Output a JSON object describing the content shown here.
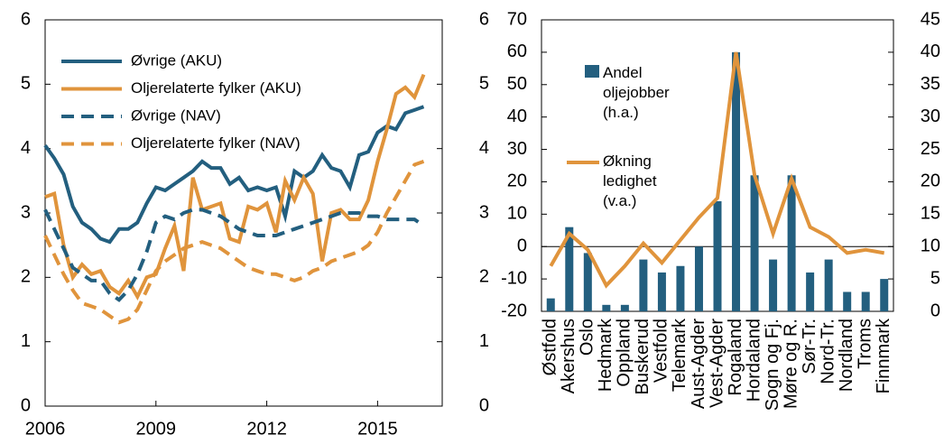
{
  "chart_data": [
    {
      "type": "line",
      "x": [
        2006,
        2006.25,
        2006.5,
        2006.75,
        2007,
        2007.25,
        2007.5,
        2007.75,
        2008,
        2008.25,
        2008.5,
        2008.75,
        2009,
        2009.25,
        2009.5,
        2009.75,
        2010,
        2010.25,
        2010.5,
        2010.75,
        2011,
        2011.25,
        2011.5,
        2011.75,
        2012,
        2012.25,
        2012.5,
        2012.75,
        2013,
        2013.25,
        2013.5,
        2013.75,
        2014,
        2014.25,
        2014.5,
        2014.75,
        2015,
        2015.25,
        2015.5,
        2015.75,
        2016,
        2016.25
      ],
      "xlim": [
        2006,
        2016.75
      ],
      "xticks": [
        2006,
        2009,
        2012,
        2015
      ],
      "ylim": [
        0,
        6
      ],
      "yticks": [
        0,
        1,
        2,
        3,
        4,
        5,
        6
      ],
      "y2lim": [
        0,
        6
      ],
      "y2ticks": [
        0,
        1,
        2,
        3,
        4,
        5,
        6
      ],
      "series": [
        {
          "name": "Øvrige (AKU)",
          "color": "#235f7f",
          "line_style": "solid",
          "values": [
            4.05,
            3.85,
            3.6,
            3.1,
            2.85,
            2.75,
            2.6,
            2.55,
            2.75,
            2.75,
            2.85,
            3.15,
            3.4,
            3.35,
            3.45,
            3.55,
            3.65,
            3.8,
            3.7,
            3.7,
            3.45,
            3.55,
            3.35,
            3.4,
            3.35,
            3.4,
            2.95,
            3.65,
            3.55,
            3.65,
            3.9,
            3.7,
            3.65,
            3.4,
            3.9,
            3.95,
            4.25,
            4.35,
            4.3,
            4.55,
            4.6,
            4.65
          ]
        },
        {
          "name": "Oljerelaterte fylker (AKU)",
          "color": "#e0943c",
          "line_style": "solid",
          "values": [
            3.25,
            3.3,
            2.5,
            2.0,
            2.2,
            2.05,
            2.1,
            1.85,
            1.75,
            1.95,
            1.7,
            2.0,
            2.05,
            2.45,
            2.8,
            2.1,
            3.55,
            3.05,
            3.1,
            3.15,
            2.6,
            2.55,
            3.1,
            3.05,
            3.15,
            2.7,
            3.5,
            3.2,
            3.55,
            3.3,
            2.25,
            3.0,
            3.05,
            2.9,
            2.9,
            3.2,
            3.8,
            4.3,
            4.85,
            4.95,
            4.8,
            5.15
          ]
        },
        {
          "name": "Øvrige (NAV)",
          "color": "#235f7f",
          "line_style": "dashed",
          "values": [
            3.05,
            2.75,
            2.45,
            2.15,
            2.05,
            1.95,
            1.95,
            1.75,
            1.65,
            1.8,
            2.05,
            2.4,
            2.85,
            2.95,
            2.9,
            3.0,
            3.05,
            3.05,
            3.0,
            2.95,
            2.85,
            2.75,
            2.7,
            2.65,
            2.65,
            2.65,
            2.7,
            2.75,
            2.8,
            2.85,
            2.9,
            2.95,
            3.0,
            3.0,
            3.0,
            2.95,
            2.95,
            2.9,
            2.9,
            2.9,
            2.9,
            2.8
          ]
        },
        {
          "name": "Oljerelaterte fylker (NAV)",
          "color": "#e0943c",
          "line_style": "dashed",
          "values": [
            2.65,
            2.35,
            2.05,
            1.8,
            1.6,
            1.55,
            1.5,
            1.4,
            1.3,
            1.35,
            1.5,
            1.8,
            2.1,
            2.25,
            2.35,
            2.45,
            2.5,
            2.55,
            2.5,
            2.45,
            2.35,
            2.25,
            2.15,
            2.1,
            2.05,
            2.05,
            2.0,
            1.95,
            2.0,
            2.1,
            2.15,
            2.25,
            2.3,
            2.35,
            2.4,
            2.5,
            2.7,
            3.0,
            3.25,
            3.5,
            3.75,
            3.8
          ]
        }
      ]
    },
    {
      "type": "bar",
      "categories": [
        "Østfold",
        "Akershus",
        "Oslo",
        "Hedmark",
        "Oppland",
        "Buskerud",
        "Vestfold",
        "Telemark",
        "Aust-Agder",
        "Vest-Agder",
        "Rogaland",
        "Hordaland",
        "Sogn og Fj.",
        "Møre og R.",
        "Sør-Tr.",
        "Nord-Tr.",
        "Nordland",
        "Troms",
        "Finnmark"
      ],
      "ylim": [
        -20,
        70
      ],
      "yticks": [
        -20,
        -10,
        0,
        10,
        20,
        30,
        40,
        50,
        60,
        70
      ],
      "y2lim": [
        0,
        45
      ],
      "y2ticks": [
        0,
        5,
        10,
        15,
        20,
        25,
        30,
        35,
        40,
        45
      ],
      "series": [
        {
          "name": "Andel oljejobber (h.a.)",
          "type": "bar",
          "axis": "y2",
          "color": "#235f7f",
          "values": [
            2,
            13,
            9,
            1,
            1,
            8,
            6,
            7,
            10,
            17,
            40,
            21,
            8,
            21,
            6,
            8,
            3,
            3,
            5
          ]
        },
        {
          "name": "Økning ledighet (v.a.)",
          "type": "line",
          "color": "#e0943c",
          "values": [
            -6,
            4,
            -1,
            -12,
            -6,
            1,
            -5,
            2,
            9,
            15,
            60,
            22,
            4,
            21,
            6,
            3,
            -2,
            -1,
            -2
          ]
        }
      ]
    }
  ]
}
